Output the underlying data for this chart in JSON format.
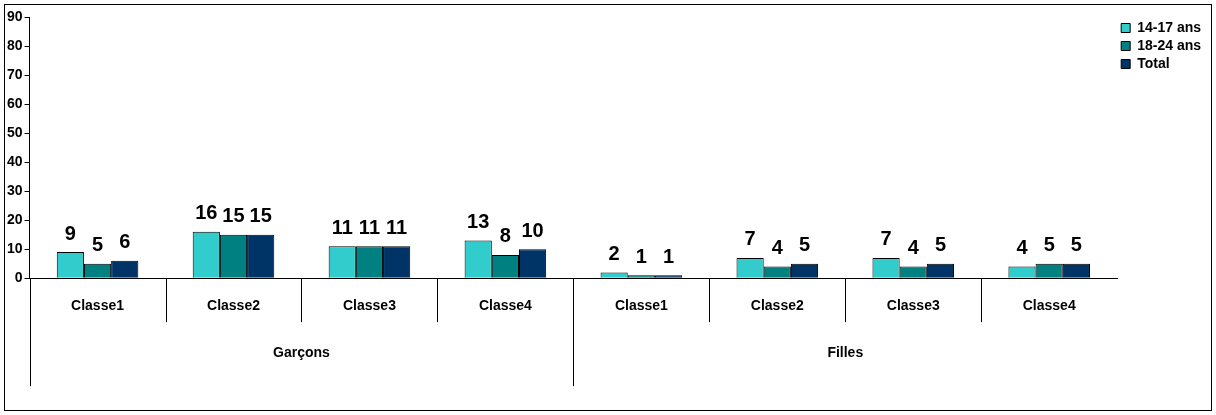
{
  "chart_data": {
    "type": "bar",
    "categories": [
      "Classe1",
      "Classe2",
      "Classe3",
      "Classe4",
      "Classe1",
      "Classe2",
      "Classe3",
      "Classe4"
    ],
    "series": [
      {
        "name": "14-17 ans",
        "color": "#33cccc",
        "values": [
          9,
          16,
          11,
          13,
          2,
          7,
          7,
          4
        ]
      },
      {
        "name": "18-24 ans",
        "color": "#008080",
        "values": [
          5,
          15,
          11,
          8,
          1,
          4,
          4,
          5
        ]
      },
      {
        "name": "Total",
        "color": "#003366",
        "values": [
          6,
          15,
          11,
          10,
          1,
          5,
          5,
          5
        ]
      }
    ],
    "annotations": [
      "Garçons",
      "Filles"
    ],
    "ylim": [
      0,
      90
    ],
    "yticks": [
      0,
      10,
      20,
      30,
      40,
      50,
      60,
      70,
      80,
      90
    ],
    "data_labels": true,
    "legend": "right",
    "grid": false
  }
}
